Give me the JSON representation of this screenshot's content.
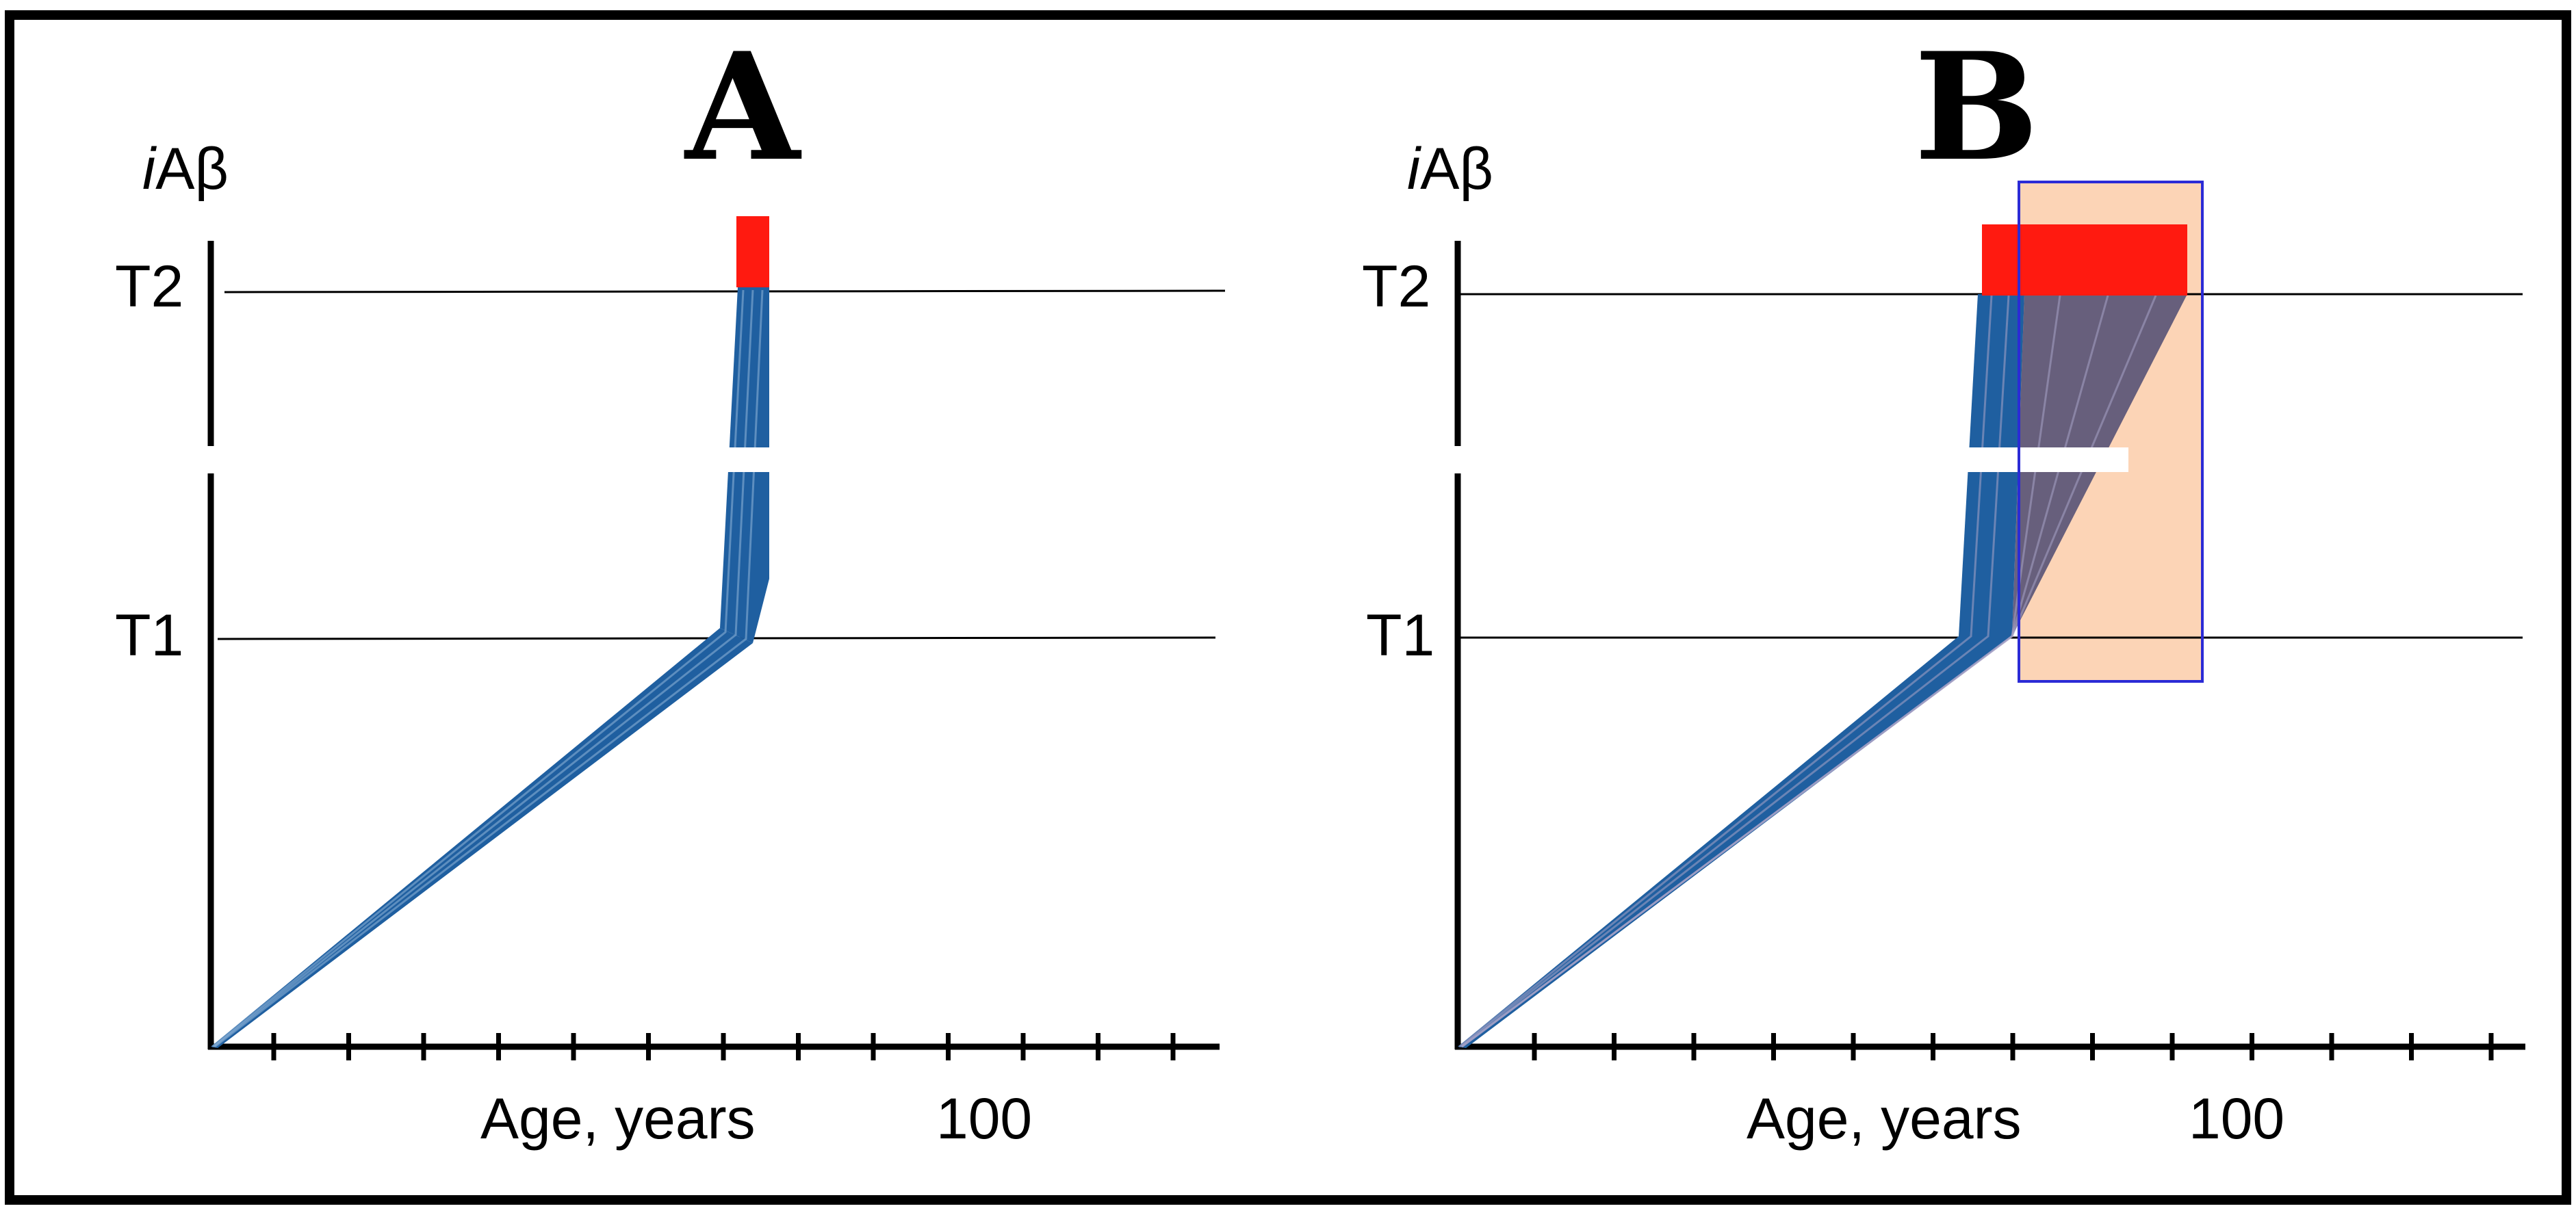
{
  "panels": [
    {
      "id": "A",
      "title": "A",
      "ylabel_italic": "i",
      "ylabel_rest": "Aβ",
      "thresholds": [
        "T2",
        "T1"
      ],
      "xlabel": "Age, years",
      "x_tick_value_label": "100"
    },
    {
      "id": "B",
      "title": "B",
      "ylabel_italic": "i",
      "ylabel_rest": "Aβ",
      "thresholds": [
        "T2",
        "T1"
      ],
      "xlabel": "Age, years",
      "x_tick_value_label": "100"
    }
  ],
  "colors": {
    "trajectory": "#1f5fa0",
    "trajectory_slow": "#5a5577",
    "t2_bar": "#ff1a10",
    "window_fill": "#fcd4b6",
    "window_border": "#2b2bd6",
    "axis": "#000000",
    "frame": "#000000"
  }
}
